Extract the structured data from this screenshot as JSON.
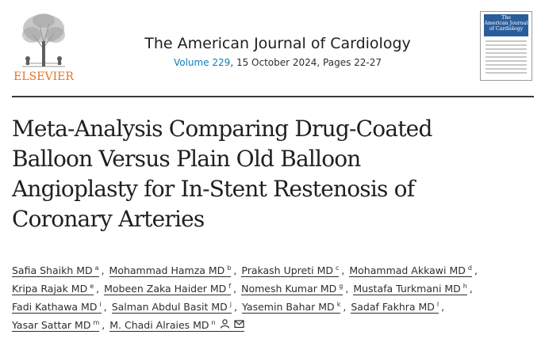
{
  "publisher": {
    "name": "ELSEVIER"
  },
  "journal": {
    "title": "The American Journal of Cardiology",
    "volume": "Volume 229",
    "issue_details": ", 15 October 2024, Pages 22-27"
  },
  "cover": {
    "line1": "The",
    "line2": "American Journal",
    "line3": "of Cardiology"
  },
  "article": {
    "title_lines": [
      "Meta-Analysis Comparing Drug-Coated",
      "Balloon Versus Plain Old Balloon",
      "Angioplasty for In-Stent Restenosis of",
      "Coronary Arteries"
    ]
  },
  "authors": [
    {
      "name": "Safia Shaikh MD",
      "sup": "a"
    },
    {
      "name": "Mohammad Hamza MD",
      "sup": "b"
    },
    {
      "name": "Prakash Upreti MD",
      "sup": "c"
    },
    {
      "name": "Mohammad Akkawi MD",
      "sup": "d"
    },
    {
      "name": "Kripa Rajak MD",
      "sup": "e"
    },
    {
      "name": "Mobeen Zaka Haider MD",
      "sup": "f"
    },
    {
      "name": "Nomesh Kumar MD",
      "sup": "g"
    },
    {
      "name": "Mustafa Turkmani MD",
      "sup": "h"
    },
    {
      "name": "Fadi Kathawa MD",
      "sup": "i"
    },
    {
      "name": "Salman Abdul Basit MD",
      "sup": "j"
    },
    {
      "name": "Yasemin Bahar MD",
      "sup": "k"
    },
    {
      "name": "Sadaf Fakhra MD",
      "sup": "l"
    },
    {
      "name": "Yasar Sattar MD",
      "sup": "m"
    },
    {
      "name": "M. Chadi Alraies MD",
      "sup": "n"
    }
  ],
  "separator": ",",
  "icons": {
    "person": "person-icon",
    "mail": "mail-icon"
  },
  "colors": {
    "publisher": "#e9711c",
    "link": "#0c7dbb",
    "cover": "#2b5d9c"
  }
}
